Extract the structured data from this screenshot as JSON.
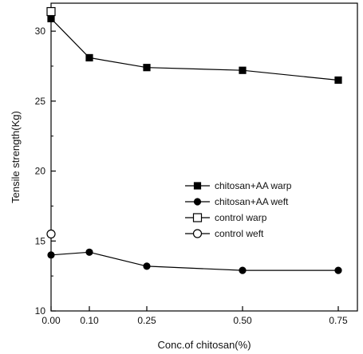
{
  "chart_data": {
    "type": "line",
    "title": "",
    "xlabel": "Conc.of chitosan(%)",
    "ylabel": "Tensile strength(Kg)",
    "xlim": [
      0,
      0.8
    ],
    "ylim": [
      10,
      32
    ],
    "x_ticks": [
      0.0,
      0.1,
      0.25,
      0.5,
      0.75
    ],
    "x_tick_labels": [
      "0.00",
      "0.10",
      "0.25",
      "0.50",
      "0.75"
    ],
    "y_ticks": [
      10,
      15,
      20,
      25,
      30
    ],
    "y_tick_labels": [
      "10",
      "15",
      "20",
      "25",
      "30"
    ],
    "grid": false,
    "legend_position": "center-right",
    "series": [
      {
        "name": "chitosan+AA warp",
        "marker": "filled-square",
        "x": [
          0.0,
          0.1,
          0.25,
          0.5,
          0.75
        ],
        "y": [
          30.9,
          28.1,
          27.4,
          27.2,
          26.5
        ]
      },
      {
        "name": "chitosan+AA weft",
        "marker": "filled-circle",
        "x": [
          0.0,
          0.1,
          0.25,
          0.5,
          0.75
        ],
        "y": [
          14.0,
          14.2,
          13.2,
          12.9,
          12.9
        ]
      },
      {
        "name": "control warp",
        "marker": "open-square",
        "x": [
          0.0
        ],
        "y": [
          31.4
        ]
      },
      {
        "name": "control weft",
        "marker": "open-circle",
        "x": [
          0.0
        ],
        "y": [
          15.5
        ]
      }
    ]
  }
}
